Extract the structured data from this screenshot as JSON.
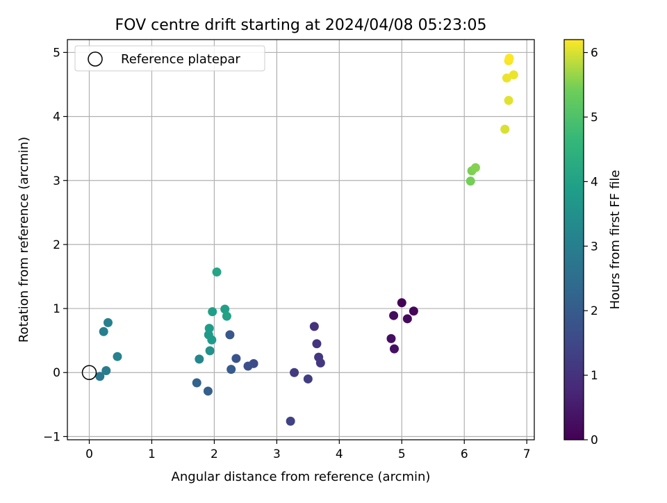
{
  "chart_data": {
    "type": "scatter",
    "title": "FOV centre drift starting at 2024/04/08 05:23:05",
    "xlabel": "Angular distance from reference (arcmin)",
    "ylabel": "Rotation from reference (arcmin)",
    "xlim": [
      -0.35,
      7.12
    ],
    "ylim": [
      -1.05,
      5.2
    ],
    "xticks": [
      0,
      1,
      2,
      3,
      4,
      5,
      6,
      7
    ],
    "yticks": [
      -1,
      0,
      1,
      2,
      3,
      4,
      5
    ],
    "grid": true,
    "legend": {
      "placement": "top-left",
      "entries": [
        "Reference platepar"
      ]
    },
    "reference_point": {
      "x": 0,
      "y": 0,
      "label": "Reference platepar"
    },
    "colorbar": {
      "label": "Hours from first FF file",
      "min": 0,
      "max": 6.2,
      "ticks": [
        0,
        1,
        2,
        3,
        4,
        5,
        6
      ],
      "colormap": "viridis"
    },
    "points": [
      {
        "x": 5.0,
        "y": 1.09,
        "c": 0.05
      },
      {
        "x": 5.19,
        "y": 0.96,
        "c": 0.1
      },
      {
        "x": 5.09,
        "y": 0.84,
        "c": 0.15
      },
      {
        "x": 4.87,
        "y": 0.89,
        "c": 0.2
      },
      {
        "x": 4.83,
        "y": 0.53,
        "c": 0.25
      },
      {
        "x": 4.88,
        "y": 0.37,
        "c": 0.3
      },
      {
        "x": 3.6,
        "y": 0.72,
        "c": 1.0
      },
      {
        "x": 3.64,
        "y": 0.45,
        "c": 1.05
      },
      {
        "x": 3.67,
        "y": 0.24,
        "c": 1.1
      },
      {
        "x": 3.7,
        "y": 0.15,
        "c": 1.15
      },
      {
        "x": 3.28,
        "y": 0.0,
        "c": 1.2
      },
      {
        "x": 3.5,
        "y": -0.1,
        "c": 1.25
      },
      {
        "x": 3.22,
        "y": -0.76,
        "c": 1.35
      },
      {
        "x": 2.63,
        "y": 0.14,
        "c": 1.6
      },
      {
        "x": 2.54,
        "y": 0.1,
        "c": 1.7
      },
      {
        "x": 2.35,
        "y": 0.22,
        "c": 1.8
      },
      {
        "x": 2.25,
        "y": 0.59,
        "c": 1.9
      },
      {
        "x": 2.27,
        "y": 0.05,
        "c": 2.0
      },
      {
        "x": 1.9,
        "y": -0.29,
        "c": 2.1
      },
      {
        "x": 1.72,
        "y": -0.16,
        "c": 2.2
      },
      {
        "x": 0.17,
        "y": -0.06,
        "c": 2.8
      },
      {
        "x": 0.27,
        "y": 0.03,
        "c": 2.9
      },
      {
        "x": 0.23,
        "y": 0.64,
        "c": 3.0
      },
      {
        "x": 0.3,
        "y": 0.78,
        "c": 3.05
      },
      {
        "x": 0.45,
        "y": 0.25,
        "c": 3.1
      },
      {
        "x": 1.76,
        "y": 0.21,
        "c": 3.25
      },
      {
        "x": 1.93,
        "y": 0.34,
        "c": 3.55
      },
      {
        "x": 1.91,
        "y": 0.59,
        "c": 3.75
      },
      {
        "x": 1.96,
        "y": 0.51,
        "c": 3.8
      },
      {
        "x": 1.92,
        "y": 0.69,
        "c": 3.85
      },
      {
        "x": 1.97,
        "y": 0.95,
        "c": 3.9
      },
      {
        "x": 2.17,
        "y": 0.99,
        "c": 3.95
      },
      {
        "x": 2.2,
        "y": 0.88,
        "c": 4.0
      },
      {
        "x": 2.04,
        "y": 1.57,
        "c": 4.1
      },
      {
        "x": 6.1,
        "y": 2.99,
        "c": 5.45
      },
      {
        "x": 6.12,
        "y": 3.15,
        "c": 5.5
      },
      {
        "x": 6.18,
        "y": 3.2,
        "c": 5.55
      },
      {
        "x": 6.65,
        "y": 3.8,
        "c": 6.0
      },
      {
        "x": 6.71,
        "y": 4.25,
        "c": 6.05
      },
      {
        "x": 6.68,
        "y": 4.6,
        "c": 6.1
      },
      {
        "x": 6.79,
        "y": 4.65,
        "c": 6.1
      },
      {
        "x": 6.71,
        "y": 4.87,
        "c": 6.15
      },
      {
        "x": 6.72,
        "y": 4.91,
        "c": 6.2
      }
    ]
  }
}
